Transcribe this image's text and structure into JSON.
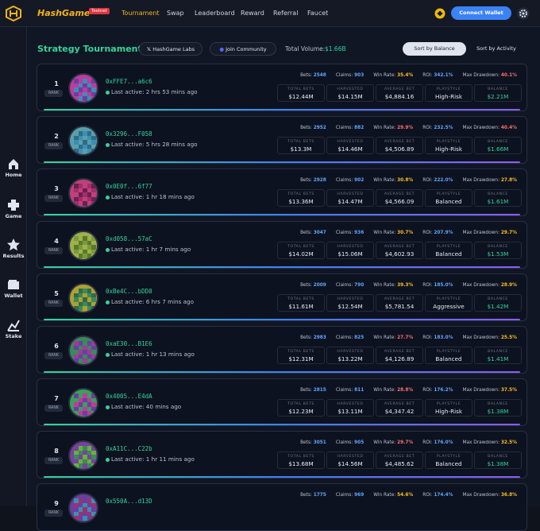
{
  "header": {
    "brand": "HashGame",
    "badge": "Testnet",
    "nav": [
      "Tournament",
      "Swap",
      "Leaderboard",
      "Reward",
      "Referral",
      "Faucet"
    ],
    "connect": "Connect Wallet"
  },
  "sidebar": [
    "Home",
    "Game",
    "Results",
    "Wallet",
    "Stake"
  ],
  "toolbar": {
    "title": "Strategy Tournament",
    "labs": "HashGame Labs",
    "community": "Join Community",
    "volume_label": "Total Volume:",
    "volume": "$1.66B",
    "sort_balance": "Sort by Balance",
    "sort_activity": "Sort by Activity"
  },
  "labels": {
    "rank": "RANK",
    "bets": "Bets:",
    "claims": "Claims:",
    "win_rate": "Win Rate:",
    "roi": "ROI:",
    "max_drawdown": "Max Drawdown:",
    "total_bets": "TOTAL BETS",
    "harvested": "HARVESTED",
    "average_bet": "AVERAGE BET",
    "playstyle": "PLAYSTYLE",
    "balance": "BALANCE"
  },
  "rows": [
    {
      "rank": 1,
      "address": "0xFFE7...a6c6",
      "last_active": "Last active: 2 hrs 53 mins ago",
      "bets": "2548",
      "claims": "903",
      "win_rate": "35.4%",
      "roi": "342.1%",
      "max_drawdown": "40.1%",
      "total_bets": "$12.44M",
      "harvested": "$14.15M",
      "average_bet": "$4,884.16",
      "playstyle": "High-Risk",
      "balance": "$2.21M"
    },
    {
      "rank": 2,
      "address": "0x3296...F058",
      "last_active": "Last active: 5 hrs 28 mins ago",
      "bets": "2952",
      "claims": "882",
      "win_rate": "29.9%",
      "roi": "232.5%",
      "max_drawdown": "40.4%",
      "total_bets": "$13.3M",
      "harvested": "$14.46M",
      "average_bet": "$4,506.89",
      "playstyle": "High-Risk",
      "balance": "$1.66M"
    },
    {
      "rank": 3,
      "address": "0x0E0f...6f77",
      "last_active": "Last active: 1 hr 18 mins ago",
      "bets": "2928",
      "claims": "902",
      "win_rate": "30.8%",
      "roi": "222.0%",
      "max_drawdown": "27.8%",
      "total_bets": "$13.36M",
      "harvested": "$14.47M",
      "average_bet": "$4,566.09",
      "playstyle": "Balanced",
      "balance": "$1.61M"
    },
    {
      "rank": 4,
      "address": "0xd058...57aC",
      "last_active": "Last active: 1 hr 7 mins ago",
      "bets": "3047",
      "claims": "936",
      "win_rate": "30.7%",
      "roi": "207.9%",
      "max_drawdown": "29.7%",
      "total_bets": "$14.02M",
      "harvested": "$15.06M",
      "average_bet": "$4,602.93",
      "playstyle": "Balanced",
      "balance": "$1.53M"
    },
    {
      "rank": 5,
      "address": "0xBe4C...bDD0",
      "last_active": "Last active: 6 hrs 7 mins ago",
      "bets": "2009",
      "claims": "790",
      "win_rate": "39.3%",
      "roi": "185.0%",
      "max_drawdown": "28.9%",
      "total_bets": "$11.61M",
      "harvested": "$12.54M",
      "average_bet": "$5,781.54",
      "playstyle": "Aggressive",
      "balance": "$1.42M"
    },
    {
      "rank": 6,
      "address": "0xaE30...B1E6",
      "last_active": "Last active: 1 hr 13 mins ago",
      "bets": "2983",
      "claims": "825",
      "win_rate": "27.7%",
      "roi": "183.0%",
      "max_drawdown": "25.5%",
      "total_bets": "$12.31M",
      "harvested": "$13.22M",
      "average_bet": "$4,126.89",
      "playstyle": "Balanced",
      "balance": "$1.41M"
    },
    {
      "rank": 7,
      "address": "0x4005...E4dA",
      "last_active": "Last active: 40 mins ago",
      "bets": "2815",
      "claims": "811",
      "win_rate": "28.8%",
      "roi": "176.2%",
      "max_drawdown": "37.5%",
      "total_bets": "$12.23M",
      "harvested": "$13.11M",
      "average_bet": "$4,347.42",
      "playstyle": "High-Risk",
      "balance": "$1.38M"
    },
    {
      "rank": 8,
      "address": "0xA11C...C22b",
      "last_active": "Last active: 1 hr 11 mins ago",
      "bets": "3051",
      "claims": "905",
      "win_rate": "29.7%",
      "roi": "176.0%",
      "max_drawdown": "32.5%",
      "total_bets": "$13.68M",
      "harvested": "$14.56M",
      "average_bet": "$4,485.62",
      "playstyle": "Balanced",
      "balance": "$1.38M"
    },
    {
      "rank": 9,
      "address": "0x550A...d13D",
      "bets": "1775",
      "claims": "969",
      "win_rate": "54.6%",
      "roi": "174.4%",
      "max_drawdown": "36.8%"
    }
  ]
}
